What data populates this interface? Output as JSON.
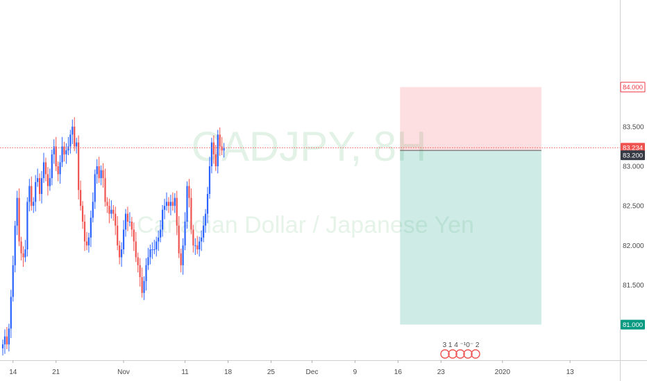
{
  "watermark": {
    "symbol": "CADJPY, 8H",
    "name": "Canadian Dollar / Japanese Yen"
  },
  "chart_data": {
    "type": "candlestick",
    "symbol": "CADJPY",
    "timeframe": "8H",
    "ylim": [
      80.55,
      85.1
    ],
    "y_ticks": [
      "83.500",
      "83.000",
      "82.500",
      "82.000",
      "81.500"
    ],
    "x_ticks": [
      {
        "label": "14",
        "t": 5
      },
      {
        "label": "21",
        "t": 26
      },
      {
        "label": "Nov",
        "t": 59
      },
      {
        "label": "11",
        "t": 89
      },
      {
        "label": "18",
        "t": 110
      },
      {
        "label": "25",
        "t": 131
      },
      {
        "label": "Dec",
        "t": 151
      },
      {
        "label": "9",
        "t": 172
      },
      {
        "label": "16",
        "t": 193
      },
      {
        "label": "23",
        "t": 214
      },
      {
        "label": "2020",
        "t": 244
      },
      {
        "label": "13",
        "t": 277
      }
    ],
    "current_price": {
      "value": 83.234,
      "label": "83.234",
      "color": "#ef5350"
    },
    "position_entry": {
      "value": 83.2,
      "label": "83.200"
    },
    "stop_loss": {
      "value": 84.0,
      "label": "84.000",
      "color": "#f23645"
    },
    "take_profit": {
      "value": 81.0,
      "label": "81.000",
      "color": "#089981"
    },
    "position_t_range": [
      194,
      263
    ],
    "up_color": "#2962ff",
    "down_color": "#ef5350",
    "closes": [
      80.75,
      80.85,
      80.75,
      80.95,
      81.35,
      81.75,
      82.25,
      82.6,
      82.05,
      81.9,
      81.85,
      81.95,
      82.55,
      82.75,
      82.5,
      82.55,
      82.8,
      82.85,
      82.65,
      82.85,
      83.05,
      82.9,
      82.75,
      82.85,
      83.15,
      83.25,
      83.0,
      82.9,
      83.05,
      83.25,
      83.15,
      83.2,
      83.25,
      83.4,
      83.5,
      83.25,
      83.3,
      82.7,
      82.5,
      82.3,
      82.05,
      82.0,
      82.1,
      82.35,
      82.55,
      82.9,
      83.0,
      82.85,
      82.95,
      82.85,
      82.55,
      82.5,
      82.4,
      82.45,
      82.4,
      82.25,
      82.0,
      81.85,
      81.95,
      82.2,
      82.4,
      82.3,
      82.3,
      82.2,
      82.05,
      81.85,
      81.75,
      81.6,
      81.4,
      81.55,
      81.75,
      81.85,
      81.95,
      81.95,
      81.95,
      82.05,
      82.1,
      82.2,
      82.45,
      82.5,
      82.55,
      82.5,
      82.55,
      82.5,
      82.6,
      82.25,
      81.9,
      81.75,
      82.0,
      82.3,
      82.75,
      82.6,
      82.2,
      82.0,
      82.0,
      81.95,
      82.05,
      82.1,
      82.25,
      82.4,
      82.65,
      83.0,
      83.3,
      83.15,
      83.0,
      83.4,
      83.25,
      83.2,
      83.234
    ]
  }
}
